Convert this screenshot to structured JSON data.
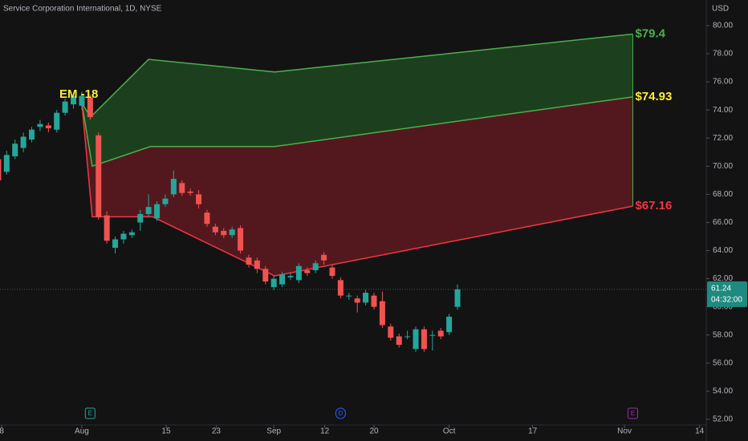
{
  "chart_data": {
    "type": "candlestick",
    "title": "Service Corporation International, 1D, NYSE",
    "y_axis_label": "USD",
    "x": [
      -10,
      -9,
      -8,
      -7,
      -6,
      -5,
      -4,
      -3,
      -2,
      -1,
      0,
      1,
      2,
      3,
      4,
      5,
      6,
      7,
      8,
      9,
      10,
      11,
      12,
      13,
      14,
      15,
      16,
      17,
      18,
      19,
      20,
      21,
      22,
      23,
      24,
      25,
      26,
      27,
      28,
      29,
      30,
      31,
      32,
      33,
      34,
      35,
      36,
      37,
      38,
      39,
      40,
      41,
      42,
      43,
      44,
      45
    ],
    "open": [
      70.5,
      69.6,
      70.7,
      71.3,
      71.9,
      72.8,
      72.9,
      72.6,
      73.8,
      74.4,
      74.3,
      74.9,
      72.2,
      66.5,
      64.2,
      64.8,
      65.1,
      66.0,
      66.6,
      66.3,
      67.3,
      68.0,
      68.8,
      68.2,
      68.0,
      66.7,
      65.7,
      65.4,
      65.1,
      65.6,
      63.5,
      63.3,
      62.7,
      61.4,
      61.6,
      62.1,
      61.9,
      62.6,
      62.6,
      63.7,
      62.8,
      61.9,
      60.8,
      60.6,
      60.3,
      60.8,
      60.4,
      58.6,
      57.9,
      57.9,
      57.0,
      58.4,
      58.0,
      58.3,
      58.2,
      60.0
    ],
    "high": [
      70.8,
      71.1,
      71.9,
      72.4,
      72.8,
      73.3,
      73.1,
      74.0,
      74.8,
      75.2,
      75.3,
      75.1,
      72.4,
      66.8,
      65.0,
      65.4,
      65.5,
      66.9,
      68.0,
      67.5,
      68.0,
      69.7,
      69.0,
      68.4,
      68.3,
      66.9,
      65.9,
      65.6,
      65.7,
      65.8,
      63.7,
      63.5,
      62.9,
      62.2,
      62.5,
      62.4,
      63.1,
      62.8,
      63.3,
      63.9,
      63.0,
      62.1,
      61.0,
      60.8,
      61.2,
      61.0,
      61.1,
      58.8,
      58.1,
      58.3,
      58.6,
      58.6,
      58.3,
      58.5,
      59.5,
      61.6
    ],
    "low": [
      68.7,
      69.4,
      70.5,
      71.0,
      71.7,
      72.5,
      72.4,
      72.4,
      73.6,
      74.1,
      74.0,
      73.3,
      66.2,
      64.5,
      63.8,
      64.5,
      64.9,
      65.4,
      66.4,
      66.1,
      67.1,
      67.8,
      67.9,
      67.9,
      67.0,
      65.7,
      65.1,
      64.9,
      64.9,
      63.8,
      62.8,
      62.4,
      61.6,
      61.2,
      61.4,
      61.9,
      61.7,
      62.2,
      62.4,
      63.0,
      62.0,
      60.6,
      60.5,
      59.6,
      60.1,
      59.8,
      58.5,
      57.6,
      57.1,
      57.7,
      56.8,
      56.8,
      56.9,
      57.7,
      58.0,
      59.8
    ],
    "close": [
      69.0,
      70.8,
      71.6,
      72.1,
      72.6,
      73.0,
      72.7,
      73.8,
      74.6,
      75.0,
      75.0,
      73.5,
      66.4,
      64.7,
      64.8,
      65.2,
      65.3,
      66.6,
      67.1,
      67.3,
      67.7,
      69.1,
      68.1,
      68.1,
      67.3,
      65.9,
      65.3,
      65.1,
      65.5,
      64.0,
      63.0,
      62.7,
      61.8,
      62.0,
      62.3,
      62.2,
      62.9,
      62.4,
      63.1,
      63.3,
      62.2,
      60.8,
      60.8,
      60.3,
      61.0,
      60.0,
      58.7,
      57.8,
      57.3,
      57.9,
      58.4,
      57.0,
      58.0,
      57.9,
      59.3,
      61.24
    ],
    "up_color": "#26a69a",
    "down_color": "#ef5350",
    "xlim": [
      -9.8,
      74.8
    ],
    "ylim": [
      51.6,
      81.82
    ],
    "xticks": [
      {
        "value": -9.6,
        "label": "8"
      },
      {
        "value": 0,
        "label": "Aug"
      },
      {
        "value": 10.1,
        "label": "15"
      },
      {
        "value": 16.1,
        "label": "23"
      },
      {
        "value": 23,
        "label": "Sep"
      },
      {
        "value": 29.1,
        "label": "12"
      },
      {
        "value": 35,
        "label": "20"
      },
      {
        "value": 44,
        "label": "Oct"
      },
      {
        "value": 54,
        "label": "17"
      },
      {
        "value": 65,
        "label": "Nov"
      },
      {
        "value": 74,
        "label": "14"
      }
    ],
    "yticks": [
      {
        "value": 52,
        "label": "52.00"
      },
      {
        "value": 54,
        "label": "54.00"
      },
      {
        "value": 56,
        "label": "56.00"
      },
      {
        "value": 58,
        "label": "58.00"
      },
      {
        "value": 60,
        "label": "60.00"
      },
      {
        "value": 62,
        "label": "62.00"
      },
      {
        "value": 64,
        "label": "64.00"
      },
      {
        "value": 66,
        "label": "66.00"
      },
      {
        "value": 68,
        "label": "68.00"
      },
      {
        "value": 70,
        "label": "70.00"
      },
      {
        "value": 72,
        "label": "72.00"
      },
      {
        "value": 74,
        "label": "74.00"
      },
      {
        "value": 76,
        "label": "76.00"
      },
      {
        "value": 78,
        "label": "78.00"
      },
      {
        "value": 80,
        "label": "80.00"
      }
    ],
    "last_price": 61.24,
    "countdown": "04:32:00",
    "annotation": "EM -18",
    "bands": [
      {
        "color": "#4caf50",
        "x": [
          0,
          1.06,
          8,
          23.1,
          66
        ],
        "values": [
          74.5,
          73.5,
          77.6,
          76.7,
          79.4
        ],
        "value_labels": [
          null,
          null,
          null,
          null,
          "$79.4"
        ],
        "label_color": "#4caf50"
      },
      {
        "color": "#4caf50",
        "x": [
          0,
          1.25,
          8.2,
          23.1,
          66
        ],
        "values": [
          74.5,
          70.0,
          71.4,
          71.4,
          74.93
        ],
        "value_labels": [
          null,
          null,
          null,
          null,
          "$74.93"
        ],
        "label_color": "#ffeb3b"
      },
      {
        "color": "#f23645",
        "x": [
          0,
          1.25,
          8.5,
          23.1,
          66
        ],
        "values": [
          74.5,
          66.4,
          66.4,
          62.2,
          67.16
        ],
        "value_labels": [
          null,
          null,
          null,
          null,
          "$67.16"
        ],
        "label_color": "#f23645"
      }
    ],
    "band_fills": [
      "#1e4620",
      "#5b1a20"
    ],
    "events": [
      {
        "label": "E",
        "x": 1,
        "color": "#26a69a"
      },
      {
        "label": "D",
        "x": 31,
        "color": "#2962ff"
      },
      {
        "label": "E",
        "x": 66,
        "color": "#9c27b0"
      }
    ]
  }
}
